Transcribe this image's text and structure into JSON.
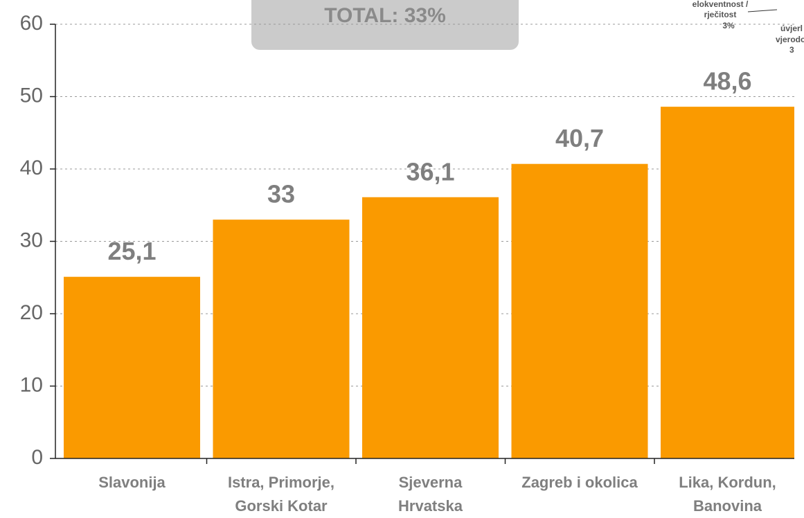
{
  "chart_data": {
    "type": "bar",
    "title": "TOTAL: 33%",
    "categories": [
      "Slavonija",
      "Istra, Primorje,\nGorski Kotar",
      "Sjeverna\nHrvatska",
      "Zagreb i okolica",
      "Lika, Kordun,\nBanovina"
    ],
    "values": [
      25.1,
      33,
      36.1,
      40.7,
      48.6
    ],
    "value_labels": [
      "25,1",
      "33",
      "36,1",
      "40,7",
      "48,6"
    ],
    "color": "#fa9a00",
    "ylim": [
      0,
      60
    ],
    "yticks": [
      0,
      10,
      20,
      30,
      40,
      50,
      60
    ],
    "grid": true,
    "annotations": [
      "elokventnost /",
      "rječitost",
      "3%",
      "úvjerl",
      "vjerodo",
      "3"
    ]
  }
}
